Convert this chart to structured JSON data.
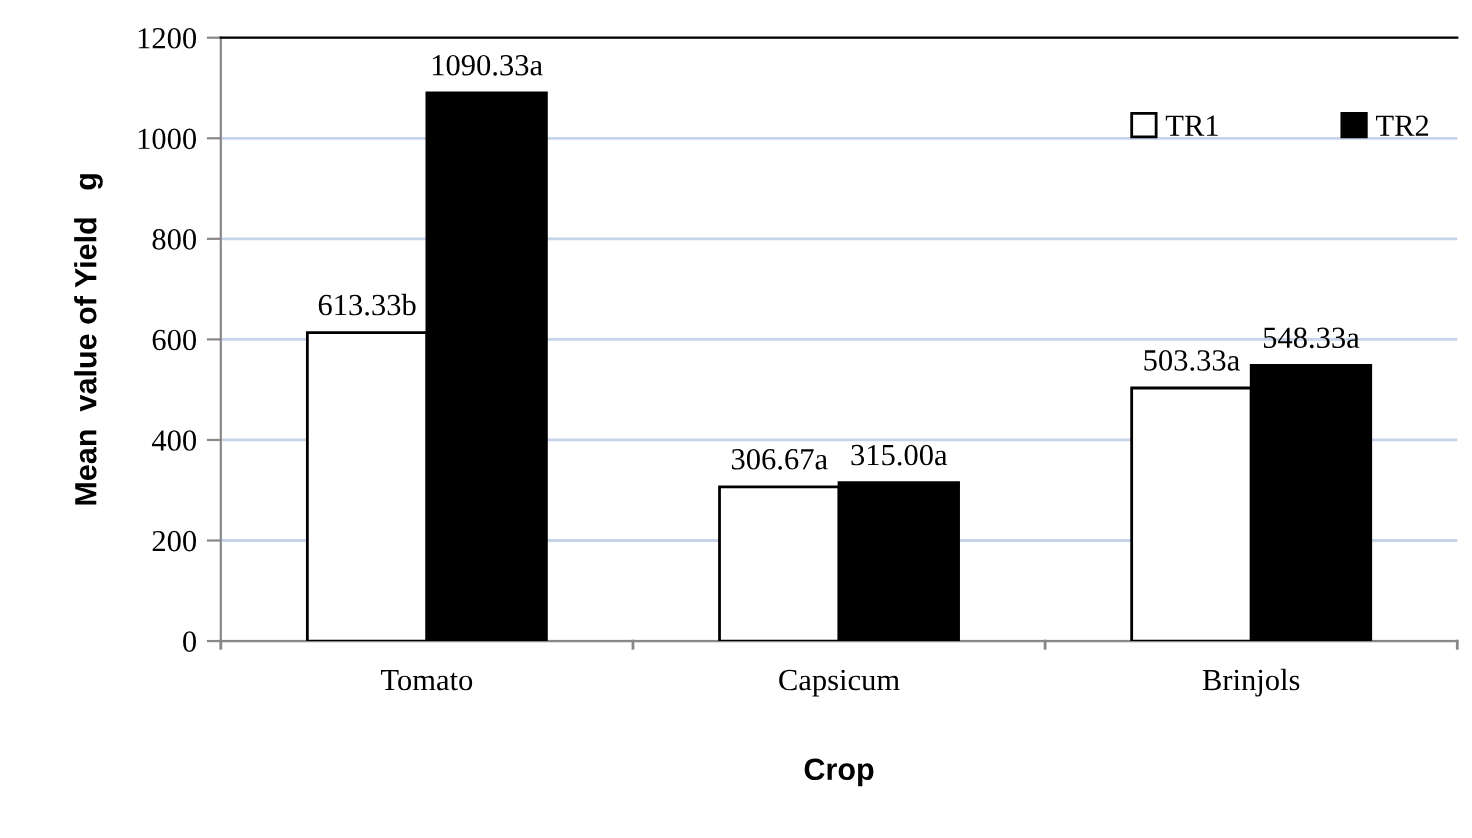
{
  "chart_data": {
    "type": "bar",
    "xlabel": "Crop",
    "ylabel": "Mean  value of Yield   g",
    "categories": [
      "Tomato",
      "Capsicum",
      "Brinjols"
    ],
    "series": [
      {
        "name": "TR1",
        "color": "#ffffff",
        "values": [
          613.33,
          306.67,
          503.33
        ],
        "value_labels": [
          "613.33b",
          "306.67a",
          "503.33a"
        ]
      },
      {
        "name": "TR2",
        "color": "#000000",
        "values": [
          1090.33,
          315.0,
          548.33
        ],
        "value_labels": [
          "1090.33a",
          "315.00a",
          "548.33a"
        ]
      }
    ],
    "ylim": [
      0,
      1200
    ],
    "yticks": [
      0,
      200,
      400,
      600,
      800,
      1000,
      1200
    ],
    "grid": "y",
    "legend": "top right"
  }
}
